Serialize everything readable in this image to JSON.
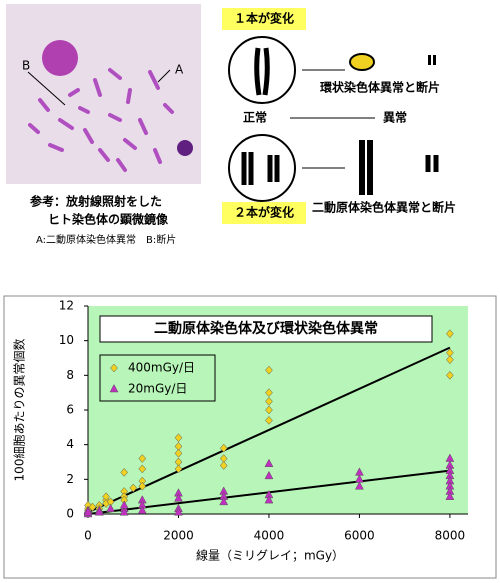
{
  "diagram": {
    "micro_labels": [
      "A",
      "B"
    ],
    "caption": [
      "参考：放射線照射をした",
      "ヒト染色体の顕微鏡像"
    ],
    "caption_note": "A:二動原体染色体異常　B:断片",
    "one_change": "１本が変化",
    "two_change": "２本が変化",
    "normal": "正常",
    "abnormal": "異常",
    "ring": "環状染色体異常と断片",
    "dicentric": "二動原体染色体異常と断片"
  },
  "chart_data": {
    "type": "scatter",
    "title": "二動原体染色体及び環状染色体異常",
    "xlabel": "線量（ミリグレイ；mGy）",
    "ylabel": "100細胞あたりの異常個数",
    "xlim": [
      0,
      8400
    ],
    "xticks": [
      0,
      2000,
      4000,
      6000,
      8000
    ],
    "ylim": [
      0,
      12
    ],
    "yticks": [
      0,
      2,
      4,
      6,
      8,
      10,
      12
    ],
    "legend": "upper left",
    "series": [
      {
        "name": "400mGy/日",
        "color": "#f0d020",
        "marker": "diamond",
        "x": [
          0,
          0,
          0,
          0,
          100,
          250,
          250,
          400,
          400,
          400,
          500,
          800,
          800,
          800,
          800,
          1000,
          1200,
          1200,
          1200,
          1200,
          2000,
          2000,
          2000,
          2000,
          2000,
          3000,
          3000,
          3000,
          4000,
          4000,
          4000,
          4000,
          4000,
          8000,
          8000,
          8000,
          8000
        ],
        "values": [
          0.2,
          0.3,
          0.1,
          0.5,
          0.4,
          0.5,
          0.3,
          0.8,
          1.0,
          0.6,
          0.7,
          2.4,
          1.3,
          1.0,
          0.8,
          1.5,
          3.2,
          2.6,
          1.9,
          1.6,
          4.4,
          3.9,
          3.5,
          3.0,
          2.6,
          3.8,
          3.2,
          2.8,
          8.3,
          7.0,
          6.5,
          6.0,
          5.4,
          10.4,
          9.3,
          8.9,
          8.0
        ]
      },
      {
        "name": "20mGy/日",
        "color": "#c030c0",
        "marker": "triangle",
        "x": [
          0,
          0,
          0,
          250,
          250,
          500,
          800,
          800,
          800,
          1200,
          1200,
          1200,
          2000,
          2000,
          2000,
          2000,
          3000,
          3000,
          3000,
          4000,
          4000,
          4000,
          4000,
          6000,
          6000,
          6000,
          8000,
          8000,
          8000,
          8000,
          8000,
          8000,
          8000,
          8000
        ],
        "values": [
          0,
          0.2,
          0.1,
          0.2,
          0.1,
          0.3,
          0.3,
          0.5,
          0.1,
          0.8,
          0.5,
          0.2,
          1.2,
          0.9,
          0.3,
          0.1,
          1.3,
          1.0,
          0.7,
          2.9,
          2.2,
          1.1,
          0.8,
          2.4,
          2.0,
          1.6,
          3.2,
          2.8,
          2.5,
          2.2,
          1.9,
          1.6,
          1.3,
          1.0
        ]
      }
    ],
    "fit_lines": [
      {
        "x": [
          0,
          8000
        ],
        "values": [
          0.1,
          9.6
        ],
        "color": "#000000"
      },
      {
        "x": [
          0,
          8000
        ],
        "values": [
          0,
          2.5
        ],
        "color": "#000000"
      }
    ]
  }
}
